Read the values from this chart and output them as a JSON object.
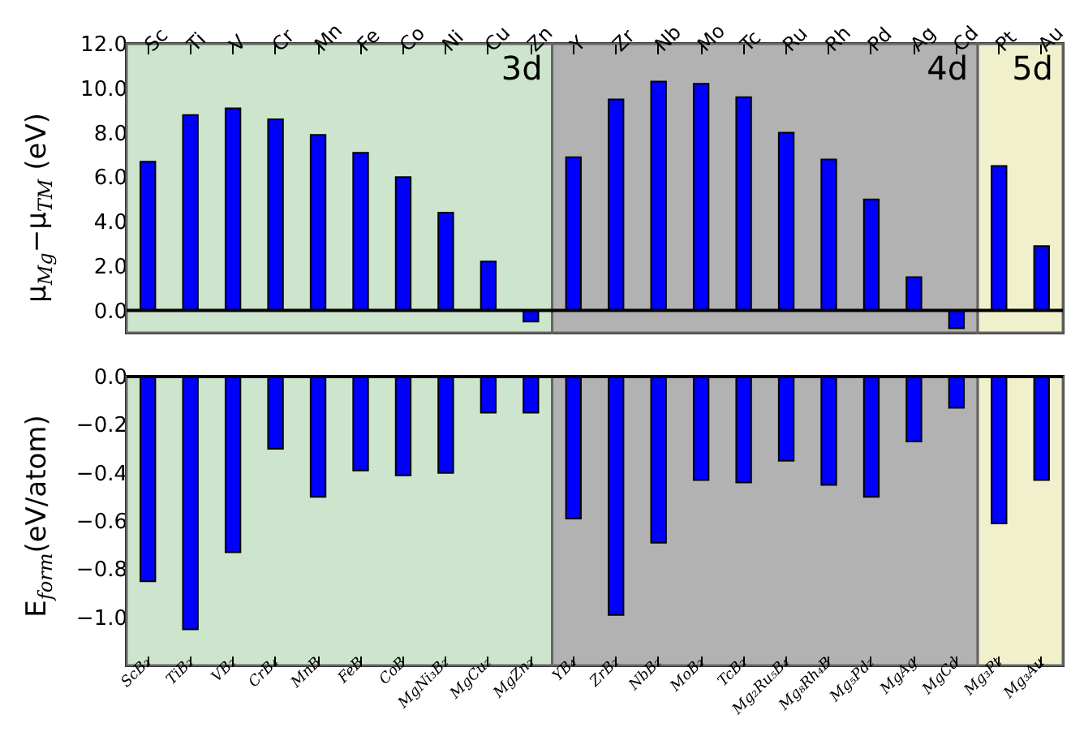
{
  "chart_data": [
    {
      "type": "bar",
      "ylabel": "μ$_{Mg}$−μ$_{TM}$ (eV)",
      "categories": [
        "Sc",
        "Ti",
        "V",
        "Cr",
        "Mn",
        "Fe",
        "Co",
        "Ni",
        "Cu",
        "Zn",
        "Y",
        "Zr",
        "Nb",
        "Mo",
        "Tc",
        "Ru",
        "Rh",
        "Pd",
        "Ag",
        "Cd",
        "Pt",
        "Au"
      ],
      "values": [
        6.7,
        8.8,
        9.1,
        8.6,
        7.9,
        7.1,
        6.0,
        4.4,
        2.2,
        -0.5,
        6.9,
        9.5,
        10.3,
        10.2,
        9.6,
        8.0,
        6.8,
        5.0,
        1.5,
        -0.8,
        6.5,
        2.9
      ],
      "color": "#0000ff",
      "ylim": [
        -1,
        12
      ],
      "yticks": [
        {
          "value": 0,
          "label": "0.0"
        },
        {
          "value": 2,
          "label": "2.0"
        },
        {
          "value": 4,
          "label": "4.0"
        },
        {
          "value": 6,
          "label": "6.0"
        },
        {
          "value": 8,
          "label": "8.0"
        },
        {
          "value": 10,
          "label": "10.0"
        },
        {
          "value": 12,
          "label": "12.0"
        }
      ],
      "bands": [
        {
          "axis": "x",
          "from": "Sc",
          "to": "Zn",
          "label": "3d",
          "color": "#cce5cc"
        },
        {
          "axis": "x",
          "from": "Y",
          "to": "Cd",
          "label": "4d",
          "color": "#b2b2b2"
        },
        {
          "axis": "x",
          "from": "Pt",
          "to": "Au",
          "label": "5d",
          "color": "#f0f0cc"
        }
      ],
      "ref_lines": [
        {
          "axis": "y",
          "value": 0
        }
      ]
    },
    {
      "type": "bar",
      "ylabel": "E$_{form}$(eV/atom)",
      "categories": [
        "ScB₂",
        "TiB₂",
        "VB₂",
        "CrB₄",
        "MnB",
        "FeB",
        "CoB",
        "MgNi₃B₂",
        "MgCu₂",
        "MgZn₂",
        "YB₄",
        "ZrB₂",
        "NbB₂",
        "MoB₂",
        "TcB₂",
        "Mg₂Ru₅B₄",
        "Mg₈Rh₄B",
        "Mg₅Pd₂",
        "MgAg",
        "MgCd",
        "Mg₃Pt",
        "Mg₃Au"
      ],
      "values": [
        -0.85,
        -1.05,
        -0.73,
        -0.3,
        -0.5,
        -0.39,
        -0.41,
        -0.4,
        -0.15,
        -0.15,
        -0.59,
        -0.99,
        -0.69,
        -0.43,
        -0.44,
        -0.35,
        -0.45,
        -0.5,
        -0.27,
        -0.13,
        -0.61,
        -0.43
      ],
      "color": "#0000ff",
      "ylim": [
        -1.2,
        0
      ],
      "yticks": [
        {
          "value": 0,
          "label": "0.0"
        },
        {
          "value": -0.2,
          "label": "−0.2"
        },
        {
          "value": -0.4,
          "label": "−0.4"
        },
        {
          "value": -0.6,
          "label": "−0.6"
        },
        {
          "value": -0.8,
          "label": "−0.8"
        },
        {
          "value": -1.0,
          "label": "−1.0"
        }
      ],
      "bands": [
        {
          "axis": "x",
          "from": "ScB₂",
          "to": "MgZn₂",
          "color": "#cce5cc"
        },
        {
          "axis": "x",
          "from": "YB₄",
          "to": "MgCd",
          "color": "#b2b2b2"
        },
        {
          "axis": "x",
          "from": "Mg₃Pt",
          "to": "Mg₃Au",
          "color": "#f0f0cc"
        }
      ],
      "ref_lines": [
        {
          "axis": "y",
          "value": 0
        }
      ]
    }
  ]
}
